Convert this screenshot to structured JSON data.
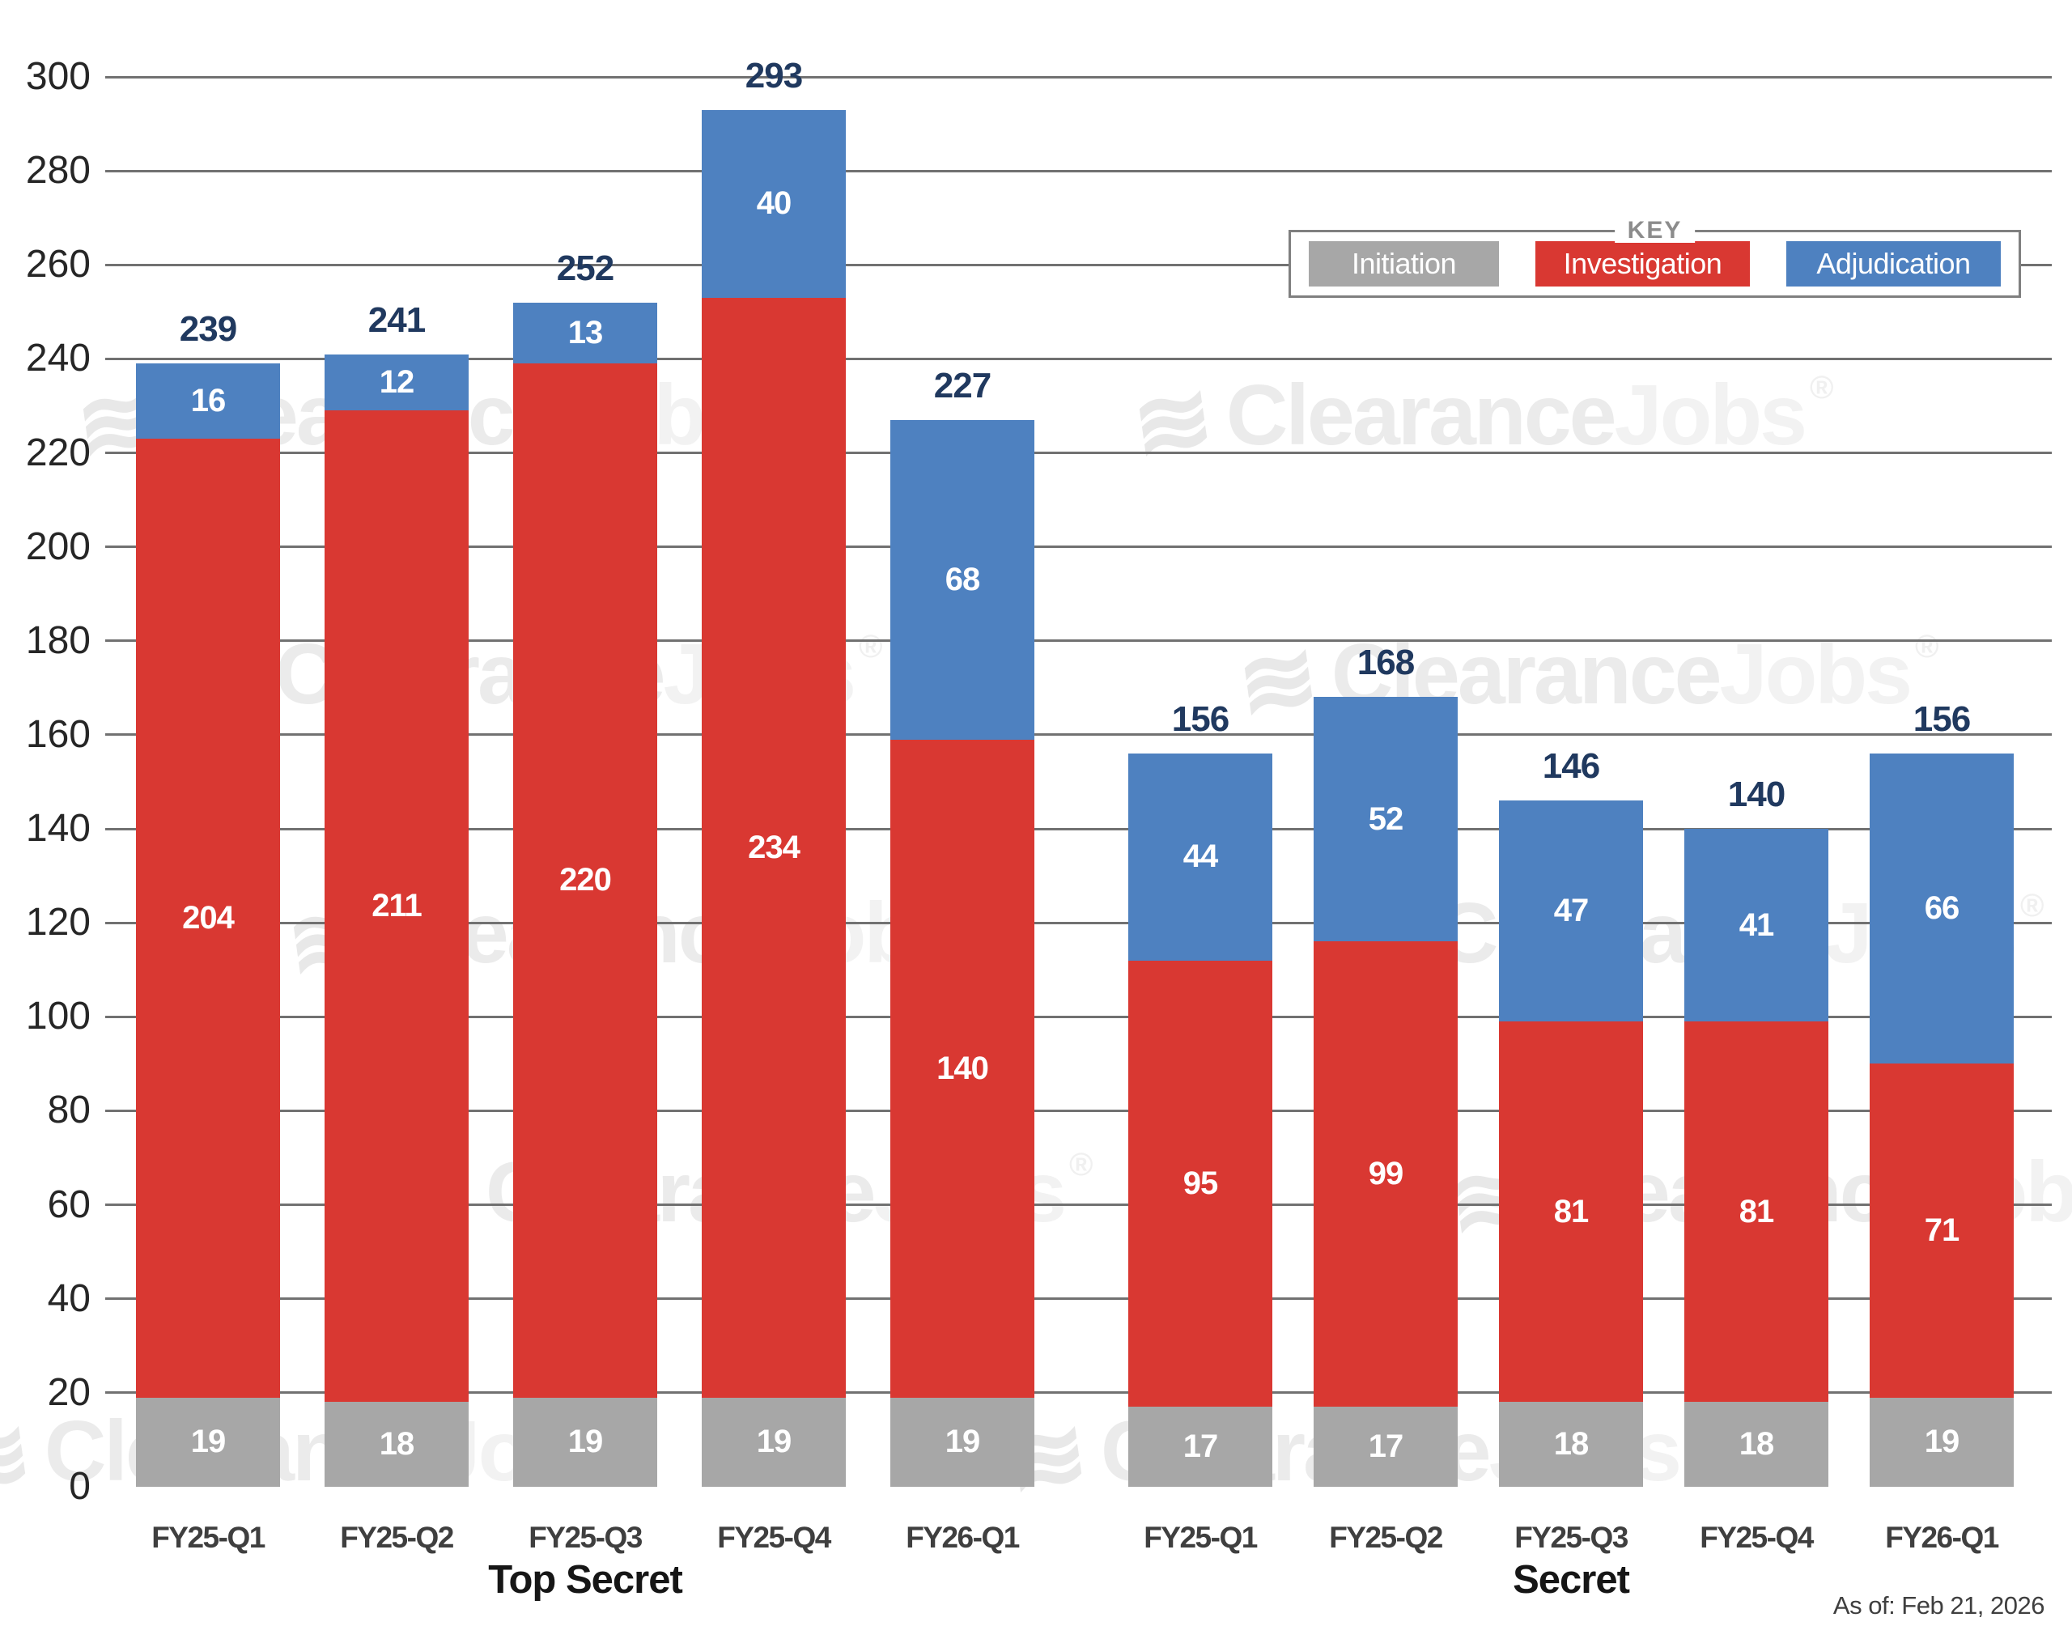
{
  "watermark": {
    "logo": "≋",
    "part1": "Clearance",
    "part2": "Jobs",
    "reg": "®"
  },
  "footer": {
    "as_of": "As of: Feb 21, 2026"
  },
  "chart_data": {
    "type": "bar",
    "stacked": true,
    "ylim": [
      0,
      300
    ],
    "ytick_step": 20,
    "yticks": [
      0,
      20,
      40,
      60,
      80,
      100,
      120,
      140,
      160,
      180,
      200,
      220,
      240,
      260,
      280,
      300
    ],
    "grid": "horizontal",
    "legend": {
      "title": "KEY",
      "position": "top-right",
      "entries": [
        {
          "label": "Initiation",
          "color": "#A7A7A7"
        },
        {
          "label": "Investigation",
          "color": "#D93832"
        },
        {
          "label": "Adjudication",
          "color": "#4E81C0"
        }
      ]
    },
    "series_order": [
      "Initiation",
      "Investigation",
      "Adjudication"
    ],
    "label_colors": {
      "total": "#20395F",
      "segment": "#FFFFFF"
    },
    "groups": [
      {
        "label": "Top Secret",
        "categories": [
          "FY25-Q1",
          "FY25-Q2",
          "FY25-Q3",
          "FY25-Q4",
          "FY26-Q1"
        ],
        "series": [
          {
            "name": "Initiation",
            "values": [
              19,
              18,
              19,
              19,
              19
            ]
          },
          {
            "name": "Investigation",
            "values": [
              204,
              211,
              220,
              234,
              140
            ]
          },
          {
            "name": "Adjudication",
            "values": [
              16,
              12,
              13,
              40,
              68
            ]
          }
        ],
        "totals": [
          239,
          241,
          252,
          293,
          227
        ]
      },
      {
        "label": "Secret",
        "categories": [
          "FY25-Q1",
          "FY25-Q2",
          "FY25-Q3",
          "FY25-Q4",
          "FY26-Q1"
        ],
        "series": [
          {
            "name": "Initiation",
            "values": [
              17,
              17,
              18,
              18,
              19
            ]
          },
          {
            "name": "Investigation",
            "values": [
              95,
              99,
              81,
              81,
              71
            ]
          },
          {
            "name": "Adjudication",
            "values": [
              44,
              52,
              47,
              41,
              66
            ]
          }
        ],
        "totals": [
          156,
          168,
          146,
          140,
          156
        ]
      }
    ]
  }
}
